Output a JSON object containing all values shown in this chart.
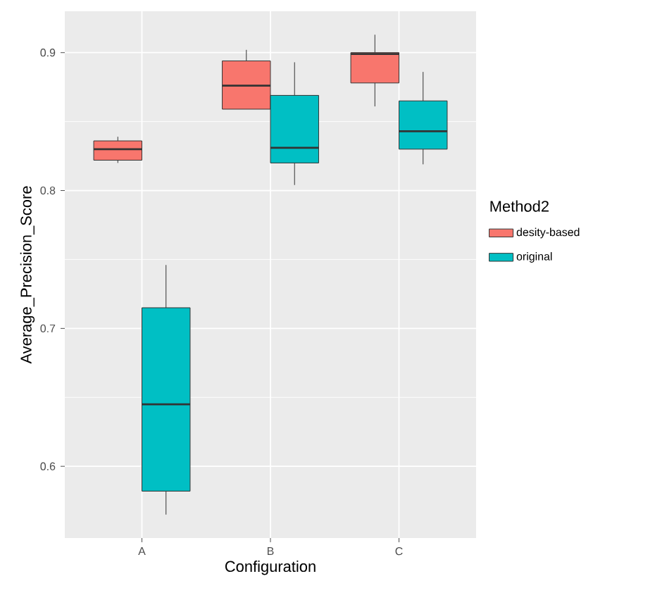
{
  "chart_data": {
    "type": "box",
    "xlabel": "Configuration",
    "ylabel": "Average_Precision_Score",
    "legend_title": "Method2",
    "categories": [
      "A",
      "B",
      "C"
    ],
    "ylim": [
      0.548,
      0.93
    ],
    "yticks": [
      0.6,
      0.7,
      0.8,
      0.9
    ],
    "grid": true,
    "legend": "right",
    "series": [
      {
        "name": "desity-based",
        "color": "#f8766d",
        "boxes": [
          {
            "low": 0.82,
            "q1": 0.822,
            "median": 0.83,
            "q3": 0.836,
            "high": 0.839
          },
          {
            "low": 0.859,
            "q1": 0.859,
            "median": 0.876,
            "q3": 0.894,
            "high": 0.902
          },
          {
            "low": 0.861,
            "q1": 0.878,
            "median": 0.899,
            "q3": 0.9,
            "high": 0.913
          }
        ]
      },
      {
        "name": "original",
        "color": "#00bfc4",
        "boxes": [
          {
            "low": 0.565,
            "q1": 0.582,
            "median": 0.645,
            "q3": 0.715,
            "high": 0.746
          },
          {
            "low": 0.804,
            "q1": 0.82,
            "median": 0.831,
            "q3": 0.869,
            "high": 0.893
          },
          {
            "low": 0.819,
            "q1": 0.83,
            "median": 0.843,
            "q3": 0.865,
            "high": 0.886
          }
        ]
      }
    ]
  }
}
